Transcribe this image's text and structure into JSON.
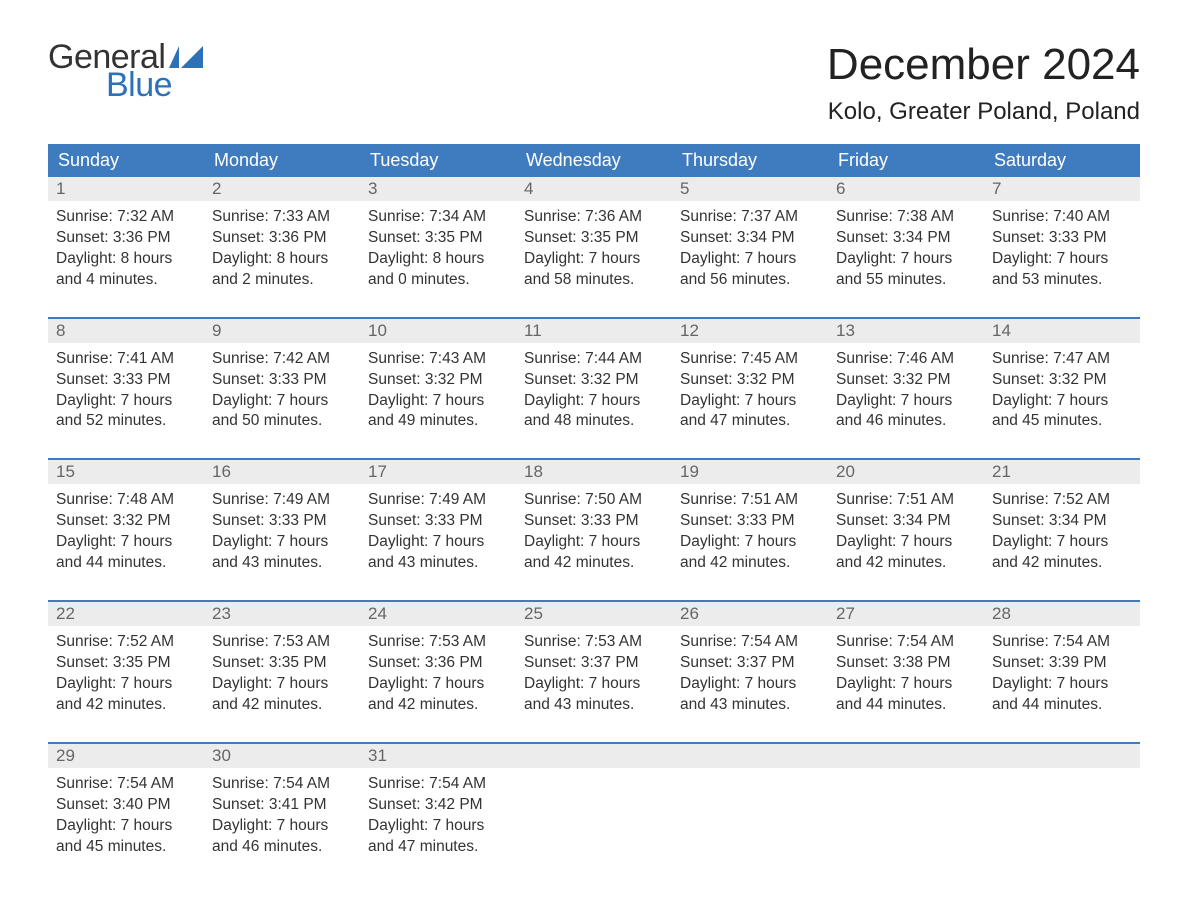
{
  "logo": {
    "text_general": "General",
    "text_blue": "Blue",
    "flag_color": "#2d71b8"
  },
  "title": "December 2024",
  "location": "Kolo, Greater Poland, Poland",
  "calendar": {
    "header_bg": "#3f7cbf",
    "header_fg": "#ffffff",
    "daynum_bg": "#ececec",
    "daynum_fg": "#666666",
    "cell_fg": "#333333",
    "week_border": "#3f7cbf",
    "weekdays": [
      "Sunday",
      "Monday",
      "Tuesday",
      "Wednesday",
      "Thursday",
      "Friday",
      "Saturday"
    ],
    "weeks": [
      [
        {
          "day": "1",
          "sunrise": "7:32 AM",
          "sunset": "3:36 PM",
          "daylight_l1": "Daylight: 8 hours",
          "daylight_l2": "and 4 minutes."
        },
        {
          "day": "2",
          "sunrise": "7:33 AM",
          "sunset": "3:36 PM",
          "daylight_l1": "Daylight: 8 hours",
          "daylight_l2": "and 2 minutes."
        },
        {
          "day": "3",
          "sunrise": "7:34 AM",
          "sunset": "3:35 PM",
          "daylight_l1": "Daylight: 8 hours",
          "daylight_l2": "and 0 minutes."
        },
        {
          "day": "4",
          "sunrise": "7:36 AM",
          "sunset": "3:35 PM",
          "daylight_l1": "Daylight: 7 hours",
          "daylight_l2": "and 58 minutes."
        },
        {
          "day": "5",
          "sunrise": "7:37 AM",
          "sunset": "3:34 PM",
          "daylight_l1": "Daylight: 7 hours",
          "daylight_l2": "and 56 minutes."
        },
        {
          "day": "6",
          "sunrise": "7:38 AM",
          "sunset": "3:34 PM",
          "daylight_l1": "Daylight: 7 hours",
          "daylight_l2": "and 55 minutes."
        },
        {
          "day": "7",
          "sunrise": "7:40 AM",
          "sunset": "3:33 PM",
          "daylight_l1": "Daylight: 7 hours",
          "daylight_l2": "and 53 minutes."
        }
      ],
      [
        {
          "day": "8",
          "sunrise": "7:41 AM",
          "sunset": "3:33 PM",
          "daylight_l1": "Daylight: 7 hours",
          "daylight_l2": "and 52 minutes."
        },
        {
          "day": "9",
          "sunrise": "7:42 AM",
          "sunset": "3:33 PM",
          "daylight_l1": "Daylight: 7 hours",
          "daylight_l2": "and 50 minutes."
        },
        {
          "day": "10",
          "sunrise": "7:43 AM",
          "sunset": "3:32 PM",
          "daylight_l1": "Daylight: 7 hours",
          "daylight_l2": "and 49 minutes."
        },
        {
          "day": "11",
          "sunrise": "7:44 AM",
          "sunset": "3:32 PM",
          "daylight_l1": "Daylight: 7 hours",
          "daylight_l2": "and 48 minutes."
        },
        {
          "day": "12",
          "sunrise": "7:45 AM",
          "sunset": "3:32 PM",
          "daylight_l1": "Daylight: 7 hours",
          "daylight_l2": "and 47 minutes."
        },
        {
          "day": "13",
          "sunrise": "7:46 AM",
          "sunset": "3:32 PM",
          "daylight_l1": "Daylight: 7 hours",
          "daylight_l2": "and 46 minutes."
        },
        {
          "day": "14",
          "sunrise": "7:47 AM",
          "sunset": "3:32 PM",
          "daylight_l1": "Daylight: 7 hours",
          "daylight_l2": "and 45 minutes."
        }
      ],
      [
        {
          "day": "15",
          "sunrise": "7:48 AM",
          "sunset": "3:32 PM",
          "daylight_l1": "Daylight: 7 hours",
          "daylight_l2": "and 44 minutes."
        },
        {
          "day": "16",
          "sunrise": "7:49 AM",
          "sunset": "3:33 PM",
          "daylight_l1": "Daylight: 7 hours",
          "daylight_l2": "and 43 minutes."
        },
        {
          "day": "17",
          "sunrise": "7:49 AM",
          "sunset": "3:33 PM",
          "daylight_l1": "Daylight: 7 hours",
          "daylight_l2": "and 43 minutes."
        },
        {
          "day": "18",
          "sunrise": "7:50 AM",
          "sunset": "3:33 PM",
          "daylight_l1": "Daylight: 7 hours",
          "daylight_l2": "and 42 minutes."
        },
        {
          "day": "19",
          "sunrise": "7:51 AM",
          "sunset": "3:33 PM",
          "daylight_l1": "Daylight: 7 hours",
          "daylight_l2": "and 42 minutes."
        },
        {
          "day": "20",
          "sunrise": "7:51 AM",
          "sunset": "3:34 PM",
          "daylight_l1": "Daylight: 7 hours",
          "daylight_l2": "and 42 minutes."
        },
        {
          "day": "21",
          "sunrise": "7:52 AM",
          "sunset": "3:34 PM",
          "daylight_l1": "Daylight: 7 hours",
          "daylight_l2": "and 42 minutes."
        }
      ],
      [
        {
          "day": "22",
          "sunrise": "7:52 AM",
          "sunset": "3:35 PM",
          "daylight_l1": "Daylight: 7 hours",
          "daylight_l2": "and 42 minutes."
        },
        {
          "day": "23",
          "sunrise": "7:53 AM",
          "sunset": "3:35 PM",
          "daylight_l1": "Daylight: 7 hours",
          "daylight_l2": "and 42 minutes."
        },
        {
          "day": "24",
          "sunrise": "7:53 AM",
          "sunset": "3:36 PM",
          "daylight_l1": "Daylight: 7 hours",
          "daylight_l2": "and 42 minutes."
        },
        {
          "day": "25",
          "sunrise": "7:53 AM",
          "sunset": "3:37 PM",
          "daylight_l1": "Daylight: 7 hours",
          "daylight_l2": "and 43 minutes."
        },
        {
          "day": "26",
          "sunrise": "7:54 AM",
          "sunset": "3:37 PM",
          "daylight_l1": "Daylight: 7 hours",
          "daylight_l2": "and 43 minutes."
        },
        {
          "day": "27",
          "sunrise": "7:54 AM",
          "sunset": "3:38 PM",
          "daylight_l1": "Daylight: 7 hours",
          "daylight_l2": "and 44 minutes."
        },
        {
          "day": "28",
          "sunrise": "7:54 AM",
          "sunset": "3:39 PM",
          "daylight_l1": "Daylight: 7 hours",
          "daylight_l2": "and 44 minutes."
        }
      ],
      [
        {
          "day": "29",
          "sunrise": "7:54 AM",
          "sunset": "3:40 PM",
          "daylight_l1": "Daylight: 7 hours",
          "daylight_l2": "and 45 minutes."
        },
        {
          "day": "30",
          "sunrise": "7:54 AM",
          "sunset": "3:41 PM",
          "daylight_l1": "Daylight: 7 hours",
          "daylight_l2": "and 46 minutes."
        },
        {
          "day": "31",
          "sunrise": "7:54 AM",
          "sunset": "3:42 PM",
          "daylight_l1": "Daylight: 7 hours",
          "daylight_l2": "and 47 minutes."
        },
        null,
        null,
        null,
        null
      ]
    ],
    "labels": {
      "sunrise_prefix": "Sunrise: ",
      "sunset_prefix": "Sunset: "
    }
  }
}
